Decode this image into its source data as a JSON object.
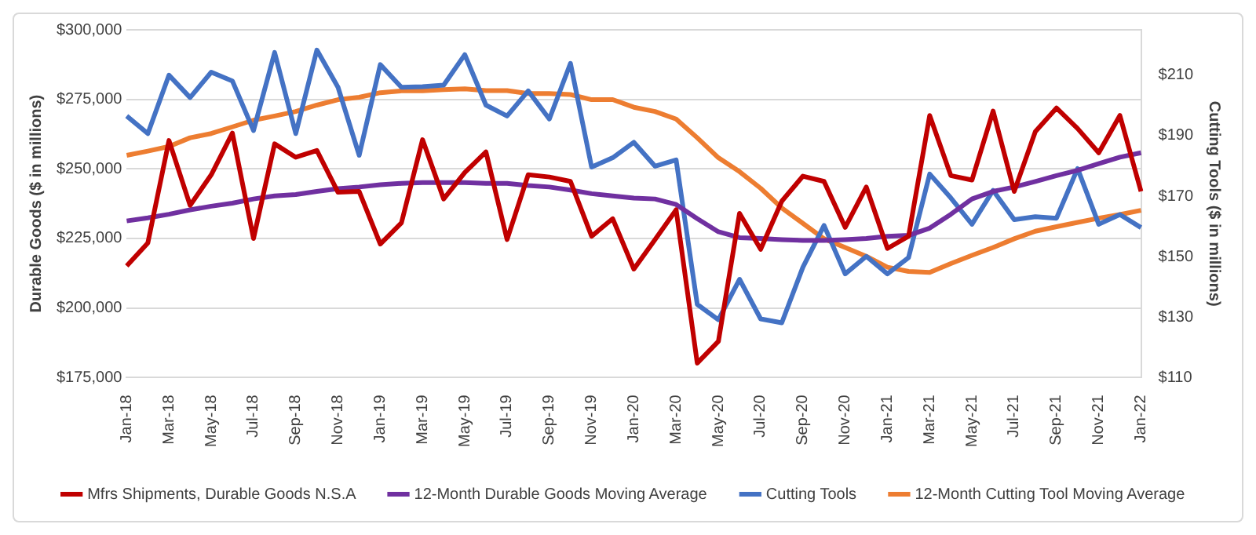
{
  "chart_data": {
    "type": "line",
    "ylabel": "Durable Goods ($ in millions)",
    "y2label": "Cutting Tools ($ in millions)",
    "categories": [
      "Jan-18",
      null,
      "Mar-18",
      null,
      "May-18",
      null,
      "Jul-18",
      null,
      "Sep-18",
      null,
      "Nov-18",
      null,
      "Jan-19",
      null,
      "Mar-19",
      null,
      "May-19",
      null,
      "Jul-19",
      null,
      "Sep-19",
      null,
      "Nov-19",
      null,
      "Jan-20",
      null,
      "Mar-20",
      null,
      "May-20",
      null,
      "Jul-20",
      null,
      "Sep-20",
      null,
      "Nov-20",
      null,
      "Jan-21",
      null,
      "Mar-21",
      null,
      "May-21",
      null,
      "Jul-21",
      null,
      "Sep-21",
      null,
      "Nov-21",
      null,
      "Jan-22"
    ],
    "series": [
      {
        "name": "Mfrs Shipments, Durable Goods N.S.A",
        "color": "#c00000",
        "values": [
          215100,
          223400,
          260200,
          236900,
          247900,
          262900,
          225000,
          259000,
          254200,
          256600,
          241600,
          241900,
          223000,
          230600,
          260500,
          239200,
          248700,
          256100,
          224600,
          247900,
          247100,
          245500,
          225800,
          232100,
          214000,
          224600,
          235300,
          180200,
          188000,
          234000,
          221100,
          238400,
          247400,
          245500,
          229000,
          243500,
          221400,
          225800,
          269200,
          247600,
          246000,
          270800,
          241900,
          263400,
          271900,
          264500,
          255800,
          269200,
          241900
        ]
      },
      {
        "name": "12-Month Durable Goods Moving Average",
        "color": "#7030a0",
        "values": [
          231300,
          232400,
          233700,
          235300,
          236600,
          237700,
          239200,
          240300,
          240800,
          241900,
          242900,
          243500,
          244300,
          244800,
          245100,
          245100,
          245100,
          244800,
          244800,
          244000,
          243500,
          242400,
          241100,
          240300,
          239500,
          239200,
          237200,
          232100,
          227400,
          225300,
          225000,
          224600,
          224300,
          224300,
          224600,
          225000,
          225800,
          226100,
          228700,
          233700,
          239200,
          241900,
          243500,
          245500,
          247600,
          249500,
          251900,
          254200,
          255800
        ]
      },
      {
        "name": "Cutting Tools",
        "color": "#4472c4",
        "axis": "y2",
        "values": [
          196.5,
          190.7,
          210.0,
          202.6,
          211.0,
          208.1,
          191.7,
          217.5,
          190.7,
          218.3,
          206.0,
          183.5,
          213.5,
          206.0,
          206.2,
          206.7,
          216.8,
          200.1,
          196.5,
          204.8,
          195.5,
          213.9,
          179.6,
          182.7,
          187.8,
          179.9,
          182.0,
          134.2,
          129.1,
          142.5,
          129.4,
          128.1,
          146.5,
          160.3,
          144.3,
          150.1,
          144.3,
          149.7,
          177.3,
          169.4,
          160.7,
          171.9,
          162.2,
          163.2,
          162.7,
          179.1,
          160.7,
          163.9,
          159.6
        ]
      },
      {
        "name": "12-Month Cutting Tool Moving Average",
        "color": "#ed7d31",
        "axis": "y2",
        "values": [
          183.5,
          184.9,
          186.4,
          189.3,
          190.7,
          192.9,
          195.1,
          196.5,
          198.0,
          200.1,
          201.9,
          202.7,
          204.2,
          204.8,
          204.8,
          205.2,
          205.5,
          204.9,
          204.9,
          203.9,
          203.9,
          203.6,
          201.9,
          201.9,
          199.4,
          198.0,
          195.5,
          189.3,
          182.7,
          178.1,
          172.6,
          166.1,
          161.0,
          155.9,
          153.0,
          150.1,
          146.5,
          145.1,
          144.8,
          147.7,
          150.4,
          153.0,
          155.9,
          158.4,
          159.9,
          161.3,
          162.7,
          163.9,
          165.3
        ]
      }
    ],
    "ylim": [
      175000,
      300000
    ],
    "yticks": [
      {
        "value": 175000,
        "label": "$175,000"
      },
      {
        "value": 200000,
        "label": "$200,000"
      },
      {
        "value": 225000,
        "label": "$225,000"
      },
      {
        "value": 250000,
        "label": "$250,000"
      },
      {
        "value": 275000,
        "label": "$275,000"
      },
      {
        "value": 300000,
        "label": "$300,000"
      }
    ],
    "y2lim": [
      110,
      225
    ],
    "y2ticks": [
      {
        "value": 110,
        "label": "$110"
      },
      {
        "value": 130,
        "label": "$130"
      },
      {
        "value": 150,
        "label": "$150"
      },
      {
        "value": 170,
        "label": "$170"
      },
      {
        "value": 190,
        "label": "$190"
      },
      {
        "value": 210,
        "label": "$210"
      }
    ],
    "grid": "y",
    "legend": "bottom",
    "marker": "none",
    "line_style": "solid"
  }
}
